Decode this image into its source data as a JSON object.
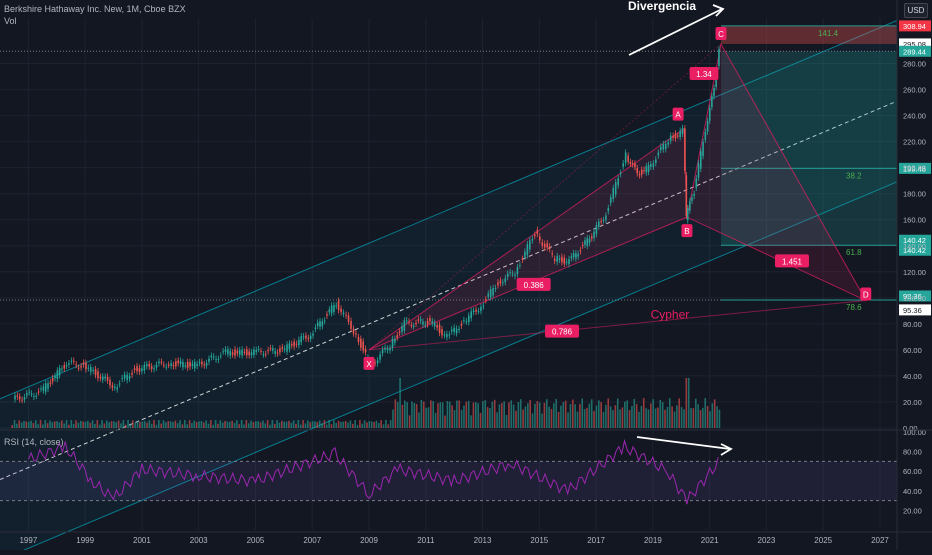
{
  "header": {
    "symbol": "Berkshire Hathaway Inc. New, 1M, Cboe BZX",
    "volume_label": "Vol",
    "rsi_label": "RSI (14, close)",
    "currency": "USD"
  },
  "colors": {
    "background": "#131722",
    "up": "#26a69a",
    "down": "#ef5350",
    "pattern": "#e91e63",
    "channel": "#00bcd4",
    "rsi_line": "#9c27b0",
    "text": "#b2b5be"
  },
  "annotations": {
    "divergence": "Divergencia",
    "pattern_name": "Cypher",
    "points": [
      "X",
      "A",
      "B",
      "C",
      "D"
    ],
    "ratios": [
      "0.386",
      "1.34",
      "1.451",
      "0.786"
    ],
    "fib_levels": [
      "141.4",
      "38.2",
      "61.8",
      "78.6"
    ]
  },
  "chart_data": [
    {
      "type": "line",
      "title": "Berkshire Hathaway Inc. New, 1M, Cboe BZX",
      "x_ticks": [
        "1997",
        "1999",
        "2001",
        "2003",
        "2005",
        "2007",
        "2009",
        "2011",
        "2013",
        "2015",
        "2017",
        "2019",
        "2021",
        "2023",
        "2025",
        "2027"
      ],
      "y_ticks": [
        0,
        20,
        40,
        60,
        80,
        100,
        120,
        140,
        160,
        180,
        200,
        220,
        240,
        260,
        280
      ],
      "ylim": [
        0,
        315
      ],
      "price_labels": [
        "308.94",
        "295.08",
        "289.44",
        "199.48",
        "140.42",
        "140.42",
        "98.36",
        "95.36"
      ],
      "series": [
        {
          "values": [
            {
              "x": 1996.5,
              "y": 22
            },
            {
              "x": 1997.5,
              "y": 28
            },
            {
              "x": 1998.4,
              "y": 50
            },
            {
              "x": 1999.0,
              "y": 48
            },
            {
              "x": 2000.1,
              "y": 32
            },
            {
              "x": 2000.8,
              "y": 45
            },
            {
              "x": 2002.0,
              "y": 50
            },
            {
              "x": 2003.0,
              "y": 48
            },
            {
              "x": 2004.0,
              "y": 58
            },
            {
              "x": 2005.0,
              "y": 58
            },
            {
              "x": 2006.0,
              "y": 60
            },
            {
              "x": 2007.0,
              "y": 72
            },
            {
              "x": 2007.9,
              "y": 96
            },
            {
              "x": 2008.6,
              "y": 72
            },
            {
              "x": 2009.1,
              "y": 48
            },
            {
              "x": 2009.8,
              "y": 64
            },
            {
              "x": 2010.3,
              "y": 80
            },
            {
              "x": 2011.2,
              "y": 82
            },
            {
              "x": 2011.8,
              "y": 70
            },
            {
              "x": 2012.4,
              "y": 82
            },
            {
              "x": 2013.0,
              "y": 94
            },
            {
              "x": 2013.6,
              "y": 112
            },
            {
              "x": 2014.2,
              "y": 120
            },
            {
              "x": 2014.9,
              "y": 150
            },
            {
              "x": 2015.6,
              "y": 130
            },
            {
              "x": 2016.1,
              "y": 128
            },
            {
              "x": 2016.9,
              "y": 148
            },
            {
              "x": 2017.4,
              "y": 165
            },
            {
              "x": 2018.1,
              "y": 210
            },
            {
              "x": 2018.5,
              "y": 195
            },
            {
              "x": 2018.9,
              "y": 200
            },
            {
              "x": 2019.6,
              "y": 222
            },
            {
              "x": 2020.1,
              "y": 228
            },
            {
              "x": 2020.2,
              "y": 162
            },
            {
              "x": 2020.5,
              "y": 182
            },
            {
              "x": 2020.9,
              "y": 230
            },
            {
              "x": 2021.2,
              "y": 260
            },
            {
              "x": 2021.4,
              "y": 292
            }
          ]
        }
      ],
      "pattern": {
        "name": "Cypher",
        "X": {
          "x": 2009.0,
          "y": 60
        },
        "A": {
          "x": 2020.1,
          "y": 230
        },
        "B": {
          "x": 2020.2,
          "y": 162
        },
        "C": {
          "x": 2021.4,
          "y": 295
        },
        "D": {
          "x": 2026.5,
          "y": 98
        }
      }
    },
    {
      "type": "line",
      "title": "RSI (14, close)",
      "y_ticks": [
        20,
        40,
        60,
        80,
        100
      ],
      "ylim": [
        0,
        100
      ],
      "series": [
        {
          "values": [
            {
              "x": 1997.0,
              "y": 72
            },
            {
              "x": 1998.3,
              "y": 85
            },
            {
              "x": 1999.3,
              "y": 48
            },
            {
              "x": 2000.0,
              "y": 32
            },
            {
              "x": 2001.0,
              "y": 62
            },
            {
              "x": 2003.0,
              "y": 55
            },
            {
              "x": 2005.0,
              "y": 50
            },
            {
              "x": 2007.8,
              "y": 78
            },
            {
              "x": 2009.0,
              "y": 36
            },
            {
              "x": 2010.0,
              "y": 62
            },
            {
              "x": 2012.0,
              "y": 50
            },
            {
              "x": 2014.0,
              "y": 68
            },
            {
              "x": 2016.0,
              "y": 40
            },
            {
              "x": 2018.0,
              "y": 85
            },
            {
              "x": 2019.5,
              "y": 60
            },
            {
              "x": 2020.2,
              "y": 30
            },
            {
              "x": 2021.4,
              "y": 72
            }
          ]
        }
      ]
    }
  ]
}
